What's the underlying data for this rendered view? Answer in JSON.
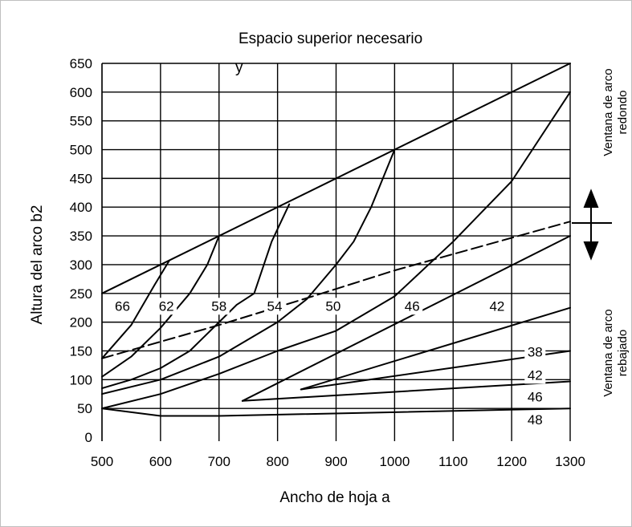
{
  "chart_data": {
    "type": "line",
    "title": "Espacio superior necesario",
    "title_line2": "y",
    "xlabel": "Ancho de hoja a",
    "ylabel": "Altura del arco b2",
    "xlim": [
      500,
      1300
    ],
    "ylim": [
      0,
      650
    ],
    "x_ticks": [
      500,
      600,
      700,
      800,
      900,
      1000,
      1100,
      1200,
      1300
    ],
    "y_ticks": [
      0,
      50,
      100,
      150,
      200,
      250,
      300,
      350,
      400,
      450,
      500,
      550,
      600,
      650
    ],
    "grid": true,
    "side_labels": {
      "round": [
        "Ventana de arco",
        "redondo"
      ],
      "segmental": [
        "Ventana de arco",
        "rebajado"
      ]
    },
    "series_labels": [
      {
        "text": "66",
        "x": 535,
        "y": 220
      },
      {
        "text": "62",
        "x": 610,
        "y": 220
      },
      {
        "text": "58",
        "x": 700,
        "y": 220
      },
      {
        "text": "54",
        "x": 795,
        "y": 220
      },
      {
        "text": "50",
        "x": 895,
        "y": 220
      },
      {
        "text": "46",
        "x": 1030,
        "y": 220
      },
      {
        "text": "42",
        "x": 1175,
        "y": 220
      },
      {
        "text": "38",
        "x": 1240,
        "y": 140
      },
      {
        "text": "42",
        "x": 1240,
        "y": 100
      },
      {
        "text": "46",
        "x": 1240,
        "y": 62
      },
      {
        "text": "48",
        "x": 1240,
        "y": 22
      }
    ],
    "series": [
      {
        "values": [
          [
            500,
            250
          ],
          [
            1300,
            650
          ]
        ]
      },
      {
        "values": [
          [
            500,
            137
          ],
          [
            550,
            195
          ],
          [
            590,
            265
          ],
          [
            615,
            307
          ]
        ]
      },
      {
        "values": [
          [
            500,
            105
          ],
          [
            550,
            140
          ],
          [
            600,
            190
          ],
          [
            650,
            250
          ],
          [
            680,
            300
          ],
          [
            700,
            350
          ]
        ]
      },
      {
        "values": [
          [
            500,
            85
          ],
          [
            550,
            100
          ],
          [
            600,
            120
          ],
          [
            650,
            150
          ],
          [
            700,
            200
          ],
          [
            730,
            230
          ],
          [
            760,
            250
          ],
          [
            790,
            340
          ],
          [
            820,
            405
          ]
        ]
      },
      {
        "values": [
          [
            500,
            75
          ],
          [
            600,
            100
          ],
          [
            700,
            140
          ],
          [
            800,
            200
          ],
          [
            850,
            240
          ],
          [
            900,
            300
          ],
          [
            930,
            340
          ],
          [
            960,
            400
          ],
          [
            1000,
            500
          ]
        ]
      },
      {
        "values": [
          [
            500,
            50
          ],
          [
            600,
            75
          ],
          [
            700,
            110
          ],
          [
            800,
            150
          ],
          [
            900,
            185
          ],
          [
            1000,
            245
          ],
          [
            1100,
            340
          ],
          [
            1200,
            445
          ],
          [
            1300,
            600
          ]
        ]
      },
      {
        "values": [
          [
            740,
            63
          ],
          [
            1300,
            350
          ]
        ]
      },
      {
        "values": [
          [
            740,
            63
          ],
          [
            1300,
            97
          ]
        ]
      },
      {
        "values": [
          [
            840,
            83
          ],
          [
            1300,
            225
          ]
        ]
      },
      {
        "values": [
          [
            840,
            83
          ],
          [
            1300,
            150
          ]
        ]
      },
      {
        "values": [
          [
            500,
            50
          ],
          [
            600,
            37
          ],
          [
            700,
            37
          ],
          [
            1300,
            50
          ]
        ]
      },
      {
        "values": [
          [
            500,
            137
          ],
          [
            700,
            195
          ],
          [
            860,
            245
          ],
          [
            1000,
            290
          ],
          [
            1300,
            375
          ]
        ],
        "dashed": true
      }
    ]
  }
}
